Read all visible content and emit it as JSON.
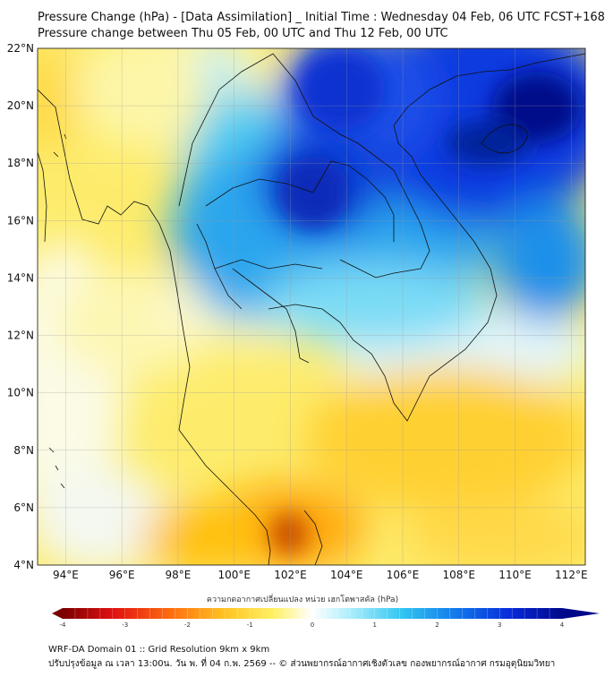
{
  "title": {
    "line1": "Pressure Change (hPa) - [Data Assimilation] _ Initial Time : Wednesday 04 Feb, 06 UTC FCST+168",
    "line2": "Pressure change between Thu 05 Feb, 00 UTC and Thu 12 Feb, 00 UTC"
  },
  "map": {
    "lat_range": [
      4,
      22
    ],
    "lon_range": [
      93,
      112.5
    ],
    "lat_labels": [
      "4°N",
      "6°N",
      "8°N",
      "10°N",
      "12°N",
      "14°N",
      "16°N",
      "18°N",
      "20°N",
      "22°N"
    ],
    "lon_labels": [
      "94°E",
      "96°E",
      "98°E",
      "100°E",
      "102°E",
      "104°E",
      "106°E",
      "108°E",
      "110°E",
      "112°E"
    ],
    "lat_values": [
      4,
      6,
      8,
      10,
      12,
      14,
      16,
      18,
      20,
      22
    ],
    "lon_values": [
      94,
      96,
      98,
      100,
      102,
      104,
      106,
      108,
      110,
      112
    ],
    "grid": true,
    "field_colors": {
      "strong_fall": "#cc5500",
      "moderate_fall": "#ffb000",
      "slight_fall": "#fff06a",
      "near_zero": "#fbfbf0",
      "slight_rise": "#44ccf2",
      "moderate_rise": "#1060ea",
      "strong_rise": "#00108a"
    }
  },
  "colorbar": {
    "title": "ความกดอากาศเปลี่ยนแปลง หน่วย เฮกโตพาสคัล (hPa)",
    "range": [
      -4,
      4
    ],
    "ticks": [
      "-4",
      "-3",
      "-2",
      "-1",
      "0",
      "1",
      "2",
      "3",
      "4"
    ],
    "tick_values": [
      -4,
      -3,
      -2,
      -1,
      0,
      1,
      2,
      3,
      4
    ],
    "extend": "both"
  },
  "footer": {
    "line1": "WRF-DA Domain 01 :: Grid Resolution 9km x 9km",
    "line2": "ปรับปรุงข้อมูล ณ เวลา 13:00น. วัน พ. ที่ 04 ก.พ. 2569 -- © ส่วนพยากรณ์อากาศเชิงตัวเลข กองพยากรณ์อากาศ กรมอุตุนิยมวิทยา"
  }
}
